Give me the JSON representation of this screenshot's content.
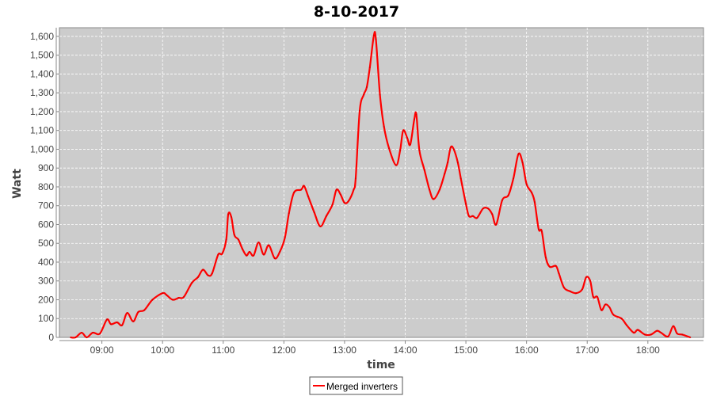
{
  "chart_data": {
    "type": "line",
    "title": "8-10-2017",
    "xlabel": "time",
    "ylabel": "Watt",
    "xlim": [
      "08:18",
      "18:55"
    ],
    "ylim": [
      0,
      1646
    ],
    "x_ticks": [
      "09:00",
      "10:00",
      "11:00",
      "12:00",
      "13:00",
      "14:00",
      "15:00",
      "16:00",
      "17:00",
      "18:00"
    ],
    "y_ticks": [
      "0",
      "100",
      "200",
      "300",
      "400",
      "500",
      "600",
      "700",
      "800",
      "900",
      "1,000",
      "1,100",
      "1,200",
      "1,300",
      "1,400",
      "1,500",
      "1,600"
    ],
    "grid": true,
    "legend_position": "bottom",
    "colors": {
      "series": "#ff0000",
      "plot_background": "#cccccc",
      "grid": "#ffffff"
    },
    "series": [
      {
        "name": "Merged inverters",
        "x": [
          "08:29",
          "08:34",
          "08:40",
          "08:45",
          "08:51",
          "08:58",
          "09:05",
          "09:09",
          "09:15",
          "09:20",
          "09:25",
          "09:31",
          "09:36",
          "09:42",
          "09:50",
          "10:00",
          "10:04",
          "10:10",
          "10:16",
          "10:21",
          "10:29",
          "10:35",
          "10:40",
          "10:45",
          "10:49",
          "10:55",
          "10:59",
          "11:03",
          "11:05",
          "11:08",
          "11:11",
          "11:15",
          "11:19",
          "11:23",
          "11:26",
          "11:30",
          "11:35",
          "11:40",
          "11:45",
          "11:51",
          "11:56",
          "12:01",
          "12:05",
          "12:10",
          "12:17",
          "12:20",
          "12:24",
          "12:30",
          "12:36",
          "12:42",
          "12:48",
          "12:52",
          "12:56",
          "13:00",
          "13:04",
          "13:09",
          "13:11",
          "13:15",
          "13:19",
          "13:22",
          "13:25",
          "13:29",
          "13:31",
          "13:35",
          "13:39",
          "13:44",
          "13:51",
          "13:55",
          "13:58",
          "14:02",
          "14:05",
          "14:09",
          "14:11",
          "14:14",
          "14:19",
          "14:24",
          "14:28",
          "14:34",
          "14:39",
          "14:42",
          "14:45",
          "14:48",
          "14:52",
          "14:55",
          "15:00",
          "15:03",
          "15:07",
          "15:11",
          "15:17",
          "15:22",
          "15:26",
          "15:30",
          "15:36",
          "15:42",
          "15:47",
          "15:52",
          "15:56",
          "16:00",
          "16:05",
          "16:08",
          "16:12",
          "16:15",
          "16:19",
          "16:23",
          "16:29",
          "16:32",
          "16:37",
          "16:43",
          "16:49",
          "16:55",
          "16:59",
          "17:03",
          "17:06",
          "17:10",
          "17:14",
          "17:18",
          "17:22",
          "17:26",
          "17:34",
          "17:39",
          "17:46",
          "17:50",
          "17:57",
          "18:03",
          "18:09",
          "18:13",
          "18:20",
          "18:25",
          "18:29",
          "18:34",
          "18:42"
        ],
        "values": [
          0,
          0,
          25,
          0,
          25,
          20,
          95,
          70,
          80,
          65,
          130,
          85,
          135,
          145,
          200,
          235,
          225,
          200,
          210,
          215,
          290,
          320,
          360,
          330,
          340,
          440,
          445,
          520,
          655,
          640,
          545,
          520,
          470,
          435,
          455,
          435,
          505,
          440,
          490,
          420,
          455,
          530,
          660,
          770,
          785,
          805,
          750,
          665,
          590,
          645,
          705,
          785,
          760,
          715,
          725,
          785,
          845,
          1205,
          1290,
          1330,
          1435,
          1605,
          1585,
          1290,
          1120,
          1005,
          915,
          995,
          1100,
          1060,
          1025,
          1160,
          1185,
          995,
          890,
          785,
          735,
          785,
          870,
          930,
          1010,
          1000,
          930,
          845,
          710,
          645,
          645,
          635,
          685,
          685,
          655,
          600,
          730,
          755,
          845,
          975,
          930,
          815,
          770,
          720,
          575,
          565,
          425,
          375,
          380,
          340,
          265,
          245,
          235,
          255,
          320,
          300,
          215,
          215,
          145,
          175,
          160,
          120,
          100,
          65,
          25,
          40,
          15,
          15,
          35,
          25,
          5,
          60,
          20,
          15,
          0
        ]
      }
    ]
  }
}
